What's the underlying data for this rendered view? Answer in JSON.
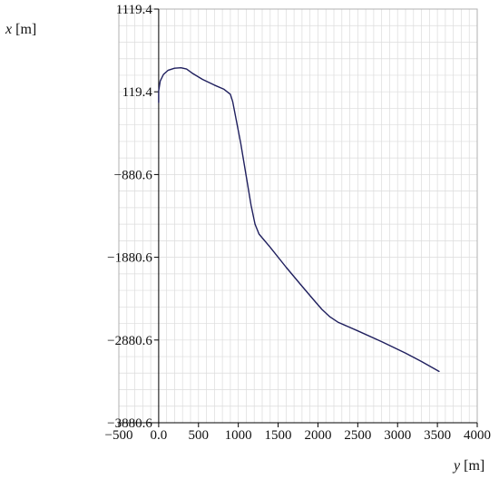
{
  "chart_data": {
    "type": "line",
    "xlabel_var": "y",
    "xlabel_unit": " [m]",
    "ylabel_var": "x",
    "ylabel_unit": " [m]",
    "xlim": [
      -500,
      4000
    ],
    "ylim": [
      -3880.6,
      1119.4
    ],
    "x_ticks": [
      -500,
      0,
      500,
      1000,
      1500,
      2000,
      2500,
      3000,
      3500,
      4000
    ],
    "x_tick_labels": [
      "−500",
      "0.0",
      "500",
      "1000",
      "1500",
      "2000",
      "2500",
      "3000",
      "3500",
      "4000"
    ],
    "y_ticks": [
      1119.4,
      119.4,
      -880.6,
      -1880.6,
      -2880.6,
      -3880.6
    ],
    "y_tick_labels": [
      "1119.4",
      "119.4",
      "−880.6",
      "−1880.6",
      "−2880.6",
      "−3880.6"
    ],
    "grid": true,
    "grid_minor_x_step": 100,
    "grid_minor_y_step": 200,
    "grid_color": "#dcdcdc",
    "line_color": "#1f1f5e",
    "series": [
      {
        "points": [
          [
            0,
            -10
          ],
          [
            0,
            130
          ],
          [
            20,
            250
          ],
          [
            60,
            330
          ],
          [
            120,
            380
          ],
          [
            200,
            405
          ],
          [
            280,
            410
          ],
          [
            350,
            395
          ],
          [
            420,
            345
          ],
          [
            550,
            270
          ],
          [
            700,
            200
          ],
          [
            820,
            150
          ],
          [
            900,
            90
          ],
          [
            930,
            0
          ],
          [
            970,
            -200
          ],
          [
            1030,
            -500
          ],
          [
            1100,
            -900
          ],
          [
            1160,
            -1250
          ],
          [
            1210,
            -1480
          ],
          [
            1260,
            -1600
          ],
          [
            1400,
            -1760
          ],
          [
            1600,
            -2000
          ],
          [
            1800,
            -2230
          ],
          [
            1950,
            -2400
          ],
          [
            2050,
            -2510
          ],
          [
            2150,
            -2600
          ],
          [
            2250,
            -2665
          ],
          [
            2500,
            -2770
          ],
          [
            2800,
            -2900
          ],
          [
            3100,
            -3040
          ],
          [
            3300,
            -3140
          ],
          [
            3520,
            -3260
          ]
        ]
      }
    ]
  }
}
